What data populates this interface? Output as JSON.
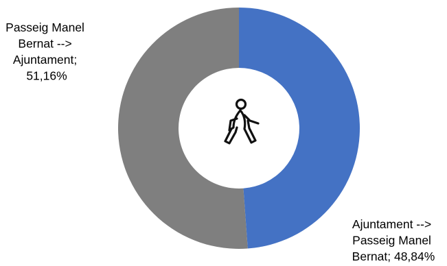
{
  "chart_data": {
    "type": "pie",
    "subtype": "donut",
    "center_icon": "pedestrian-walking-icon",
    "slices": [
      {
        "label_lines": [
          "Ajuntament  -->",
          "Passeig Manel",
          "Bernat; 48,84%"
        ],
        "category": "Ajuntament --> Passeig Manel Bernat",
        "value": 48.84,
        "value_text": "48,84%",
        "color": "#4472C4"
      },
      {
        "label_lines": [
          "Passeig Manel",
          "Bernat -->",
          "Ajuntament;",
          "51,16%"
        ],
        "category": "Passeig Manel Bernat --> Ajuntament",
        "value": 51.16,
        "value_text": "51,16%",
        "color": "#7F7F7F"
      }
    ],
    "legend": "none",
    "grid": false
  }
}
